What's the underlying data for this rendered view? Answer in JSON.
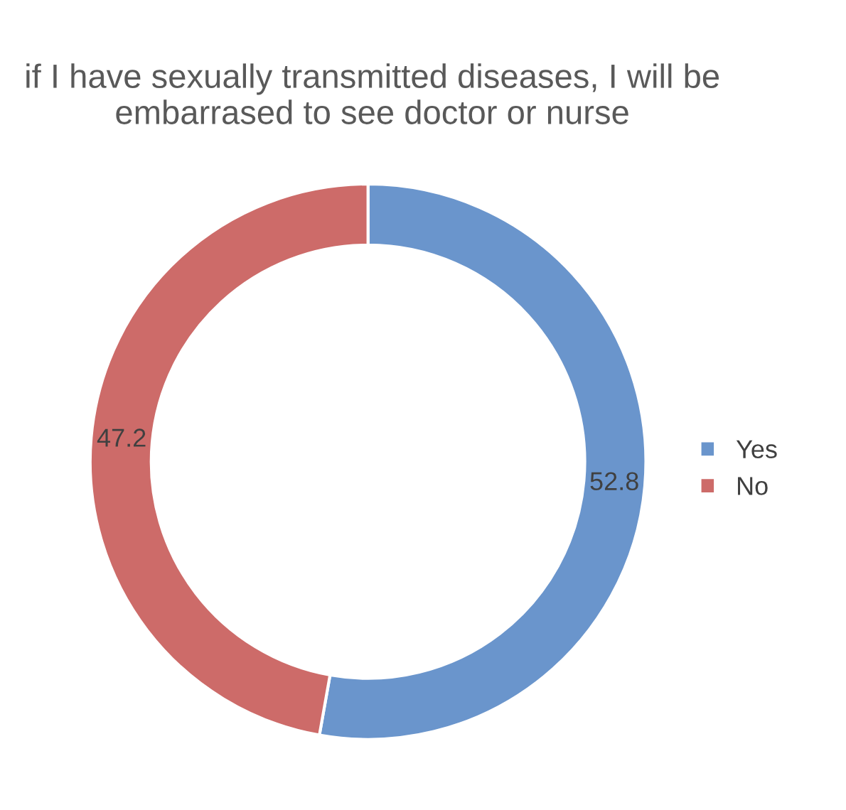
{
  "chart_data": {
    "type": "donut",
    "title": "if I have sexually transmitted diseases, I will be embarrased to see doctor or nurse",
    "categories": [
      "Yes",
      "No"
    ],
    "values": [
      52.8,
      47.2
    ],
    "colors": [
      "#6a95cc",
      "#cd6b69"
    ],
    "data_labels": true,
    "legend": "right"
  }
}
